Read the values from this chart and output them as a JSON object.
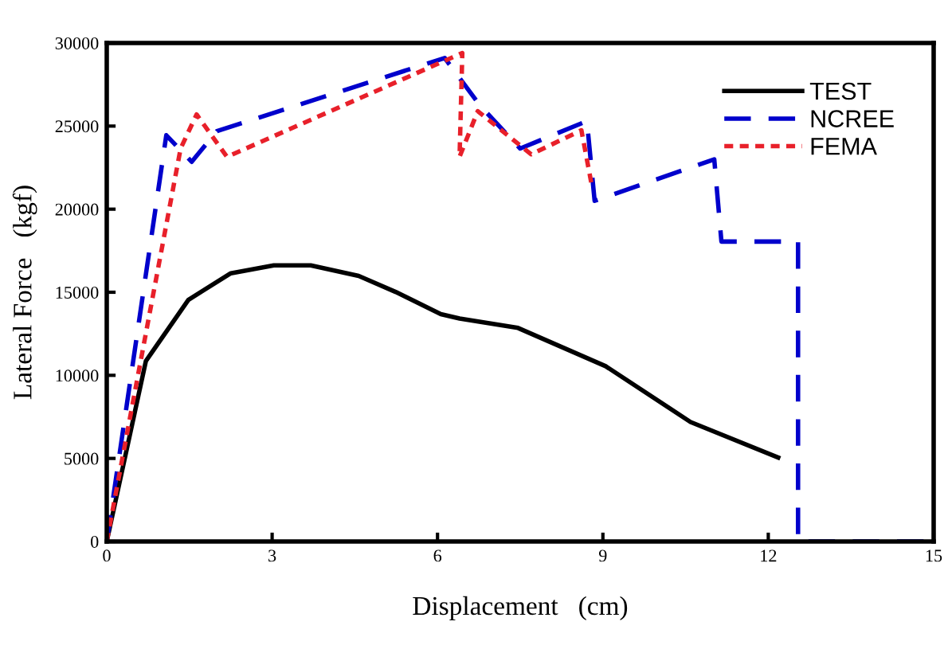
{
  "chart_data": {
    "type": "line",
    "xlabel": "Displacement   (cm)",
    "ylabel": "Lateral Force   (kgf)",
    "xlim": [
      0,
      15
    ],
    "xticks": [
      0,
      3,
      6,
      9,
      12,
      15
    ],
    "ylim": [
      0,
      30000
    ],
    "yticks": [
      0,
      5000,
      10000,
      15000,
      20000,
      25000,
      30000
    ],
    "grid": false,
    "legend": "top right",
    "marker": "none",
    "series": [
      {
        "name": "TEST",
        "color": "#000000",
        "line_style": "solid",
        "x": [
          0,
          0.71,
          1.48,
          2.25,
          3.03,
          3.7,
          4.57,
          5.24,
          6.06,
          6.4,
          7.46,
          9.05,
          10.59,
          12.18
        ],
        "values": [
          0,
          10860,
          14540,
          16140,
          16620,
          16620,
          15980,
          15020,
          13680,
          13420,
          12850,
          10550,
          7190,
          5050
        ]
      },
      {
        "name": "NCREE",
        "color": "#0000cc",
        "line_style": "dashed",
        "x": [
          0,
          1.08,
          1.54,
          2.0,
          6.13,
          6.78,
          7.5,
          8.71,
          8.85,
          11.02,
          11.15,
          12.54,
          12.54,
          15
        ],
        "values": [
          0,
          24450,
          22850,
          24700,
          29100,
          26200,
          23650,
          25300,
          20500,
          23000,
          18050,
          18050,
          0,
          0
        ]
      },
      {
        "name": "FEMA",
        "color": "#e8202a",
        "line_style": "dotted",
        "x": [
          0,
          1.34,
          1.63,
          2.18,
          6.45,
          6.4,
          6.73,
          7.7,
          8.61,
          8.8
        ],
        "values": [
          0,
          23650,
          25700,
          23150,
          29400,
          23150,
          25900,
          23300,
          24750,
          21400
        ]
      }
    ]
  }
}
